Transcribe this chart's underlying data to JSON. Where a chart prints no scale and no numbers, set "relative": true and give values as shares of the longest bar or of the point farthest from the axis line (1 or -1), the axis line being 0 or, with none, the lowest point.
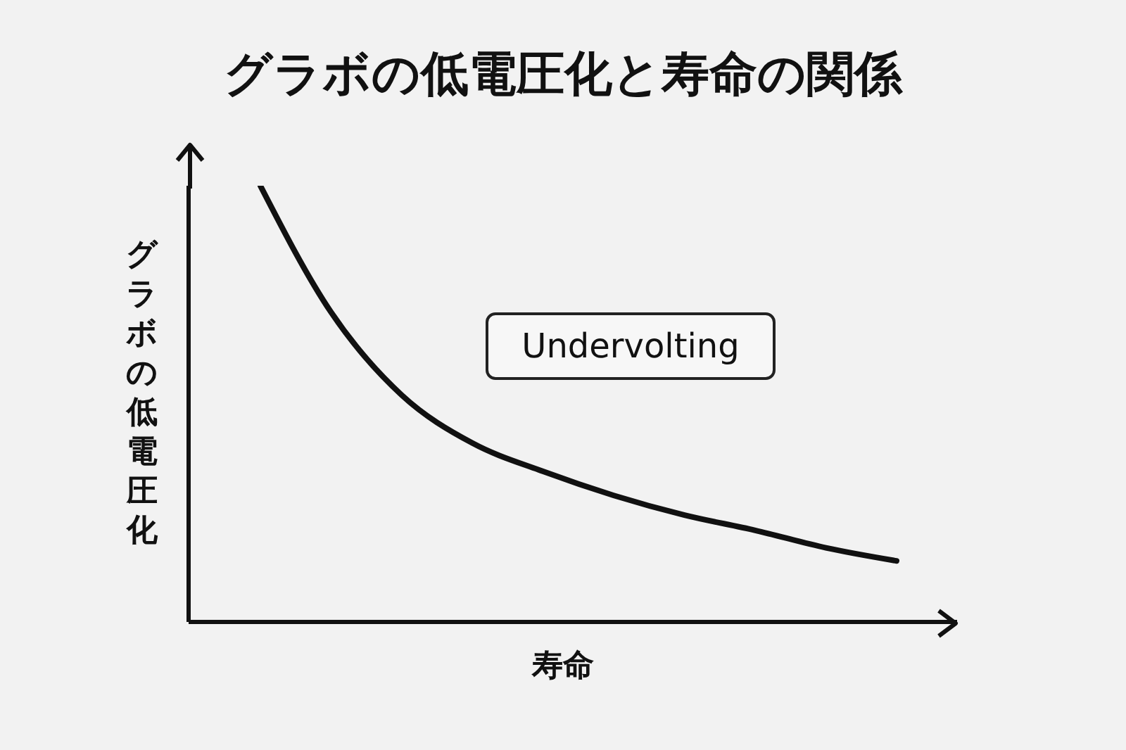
{
  "chart_data": {
    "type": "line",
    "title": "グラボの低電圧化と寿命の関係",
    "xlabel": "寿命",
    "ylabel": "グラボの低電圧化",
    "annotations": [
      "Undervolting"
    ],
    "relative": true,
    "categories": [
      null,
      null,
      null,
      null,
      null,
      null,
      null,
      null,
      null,
      null
    ],
    "series": [
      {
        "color": "#111111",
        "values": [
          1,
          0.71,
          0.52,
          0.41,
          0.345,
          0.29,
          0.245,
          0.21,
          0.17,
          0.14
        ]
      }
    ]
  }
}
